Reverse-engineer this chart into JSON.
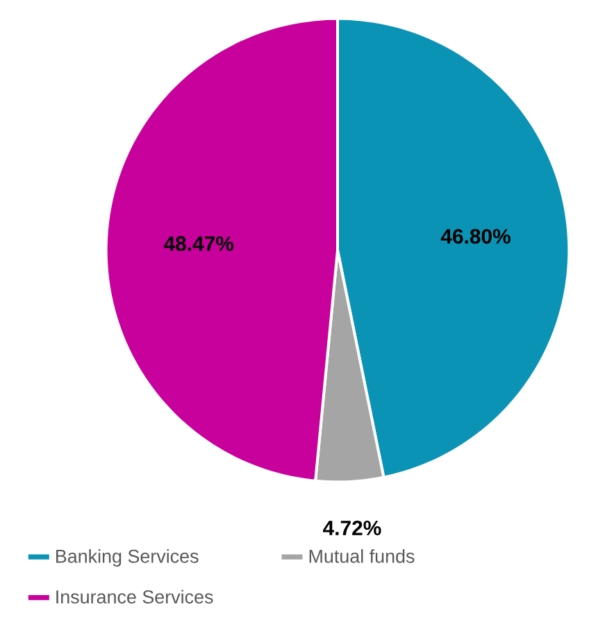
{
  "chart_data": {
    "type": "pie",
    "categories": [
      "Banking Services",
      "Mutual funds",
      "Insurance Services"
    ],
    "values": [
      46.8,
      4.72,
      48.47
    ],
    "colors": [
      "#0b93b6",
      "#a5a5a5",
      "#c8009c"
    ],
    "value_labels": [
      "46.80%",
      "4.72%",
      "48.47%"
    ],
    "legend": "bottom"
  }
}
